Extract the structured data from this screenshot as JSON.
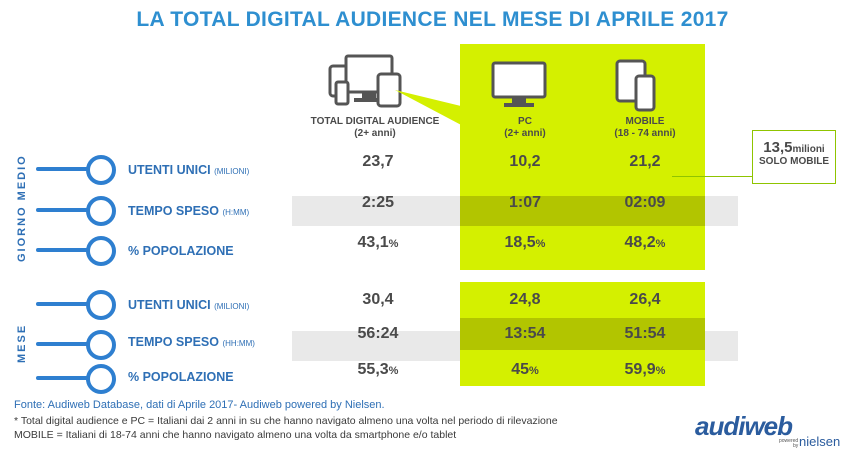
{
  "title": "LA TOTAL DIGITAL AUDIENCE NEL MESE DI APRILE 2017",
  "columns": [
    {
      "label": "TOTAL DIGITAL AUDIENCE",
      "sub": "(2+ anni)"
    },
    {
      "label": "PC",
      "sub": "(2+ anni)"
    },
    {
      "label": "MOBILE",
      "sub": "(18 - 74 anni)"
    }
  ],
  "sections": [
    {
      "name": "GIORNO MEDIO",
      "rows": [
        {
          "label": "UTENTI UNICI",
          "unit": "(MILIONI)",
          "total": "23,7",
          "total_pct": "",
          "pc": "10,2",
          "pc_pct": "",
          "mobile": "21,2",
          "mobile_pct": ""
        },
        {
          "label": "TEMPO SPESO",
          "unit": "(H:MM)",
          "total": "2:25",
          "total_pct": "",
          "pc": "1:07",
          "pc_pct": "",
          "mobile": "02:09",
          "mobile_pct": ""
        },
        {
          "label": "% POPOLAZIONE",
          "unit": "",
          "total": "43,1",
          "total_pct": "%",
          "pc": "18,5",
          "pc_pct": "%",
          "mobile": "48,2",
          "mobile_pct": "%"
        }
      ]
    },
    {
      "name": "MESE",
      "rows": [
        {
          "label": "UTENTI UNICI",
          "unit": "(MILIONI)",
          "total": "30,4",
          "total_pct": "",
          "pc": "24,8",
          "pc_pct": "",
          "mobile": "26,4",
          "mobile_pct": ""
        },
        {
          "label": "TEMPO SPESO",
          "unit": "(HH:MM)",
          "total": "56:24",
          "total_pct": "",
          "pc": "13:54",
          "pc_pct": "",
          "mobile": "51:54",
          "mobile_pct": ""
        },
        {
          "label": "% POPOLAZIONE",
          "unit": "",
          "total": "55,3",
          "total_pct": "%",
          "pc": "45",
          "pc_pct": "%",
          "mobile": "59,9",
          "mobile_pct": "%"
        }
      ]
    }
  ],
  "callout": {
    "value": "13,5",
    "unit": "milioni",
    "text": "SOLO MOBILE"
  },
  "footer": {
    "source": "Fonte: Audiweb Database, dati di Aprile 2017- Audiweb powered by Nielsen.",
    "note1": "* Total digital audience e PC = Italiani dai 2 anni in su che hanno navigato almeno una volta nel periodo di rilevazione",
    "note2": "MOBILE = Italiani di 18-74 anni che hanno navigato almeno una volta da smartphone e/o tablet"
  },
  "logo": {
    "brand": "audiweb",
    "powered": "powered",
    "by": "by",
    "nielsen": "nielsen"
  },
  "colors": {
    "accent_blue": "#2e8fd0",
    "green": "#d4f000",
    "green_dark": "#b2c500"
  }
}
